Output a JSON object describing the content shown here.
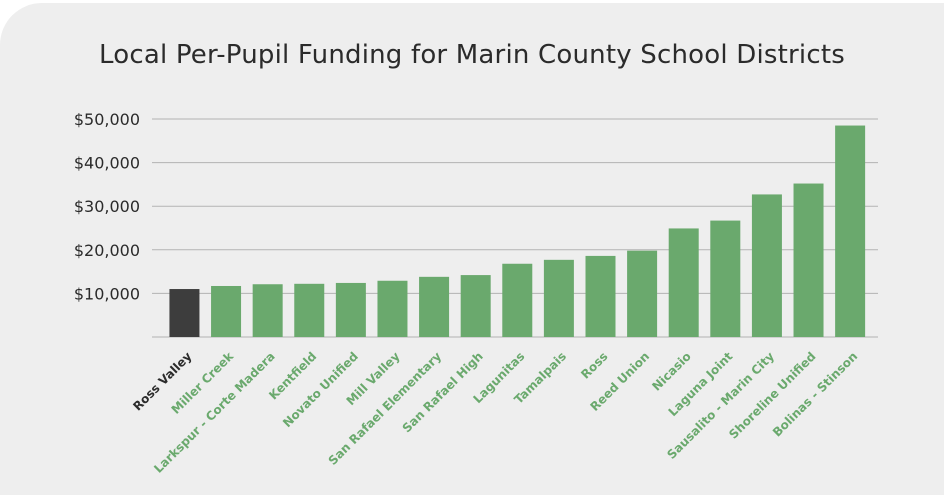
{
  "chart_data": {
    "type": "bar",
    "title": "Local Per-Pupil Funding for Marin County School Districts",
    "xlabel": "",
    "ylabel": "",
    "ylim": [
      0,
      50000
    ],
    "yticks": [
      10000,
      20000,
      30000,
      40000,
      50000
    ],
    "ytick_labels": [
      "$10,000",
      "$20,000",
      "$30,000",
      "$40,000",
      "$50,000"
    ],
    "grid": true,
    "categories": [
      "Ross Valley",
      "Miller Creek",
      "Larkspur - Corte Madera",
      "Kentfield",
      "Novato Unified",
      "Mill Valley",
      "San Rafael Elementary",
      "San Rafael High",
      "Lagunitas",
      "Tamalpais",
      "Ross",
      "Reed Union",
      "Nicasio",
      "Laguna Joint",
      "Sausalito - Marin City",
      "Shoreline Unified",
      "Bolinas - Stinson"
    ],
    "values": [
      11000,
      11700,
      12100,
      12200,
      12400,
      12900,
      13800,
      14200,
      16800,
      17700,
      18600,
      19800,
      24900,
      26700,
      32700,
      35200,
      48500
    ],
    "highlight_category": "Ross Valley",
    "colors": {
      "highlight": "#3d3d3d",
      "default": "#6aa96d",
      "label_highlight": "#2b2b2b",
      "label_default": "#6aa96d",
      "grid": "#b3b3b3",
      "tick_text": "#2b2b2b"
    }
  }
}
